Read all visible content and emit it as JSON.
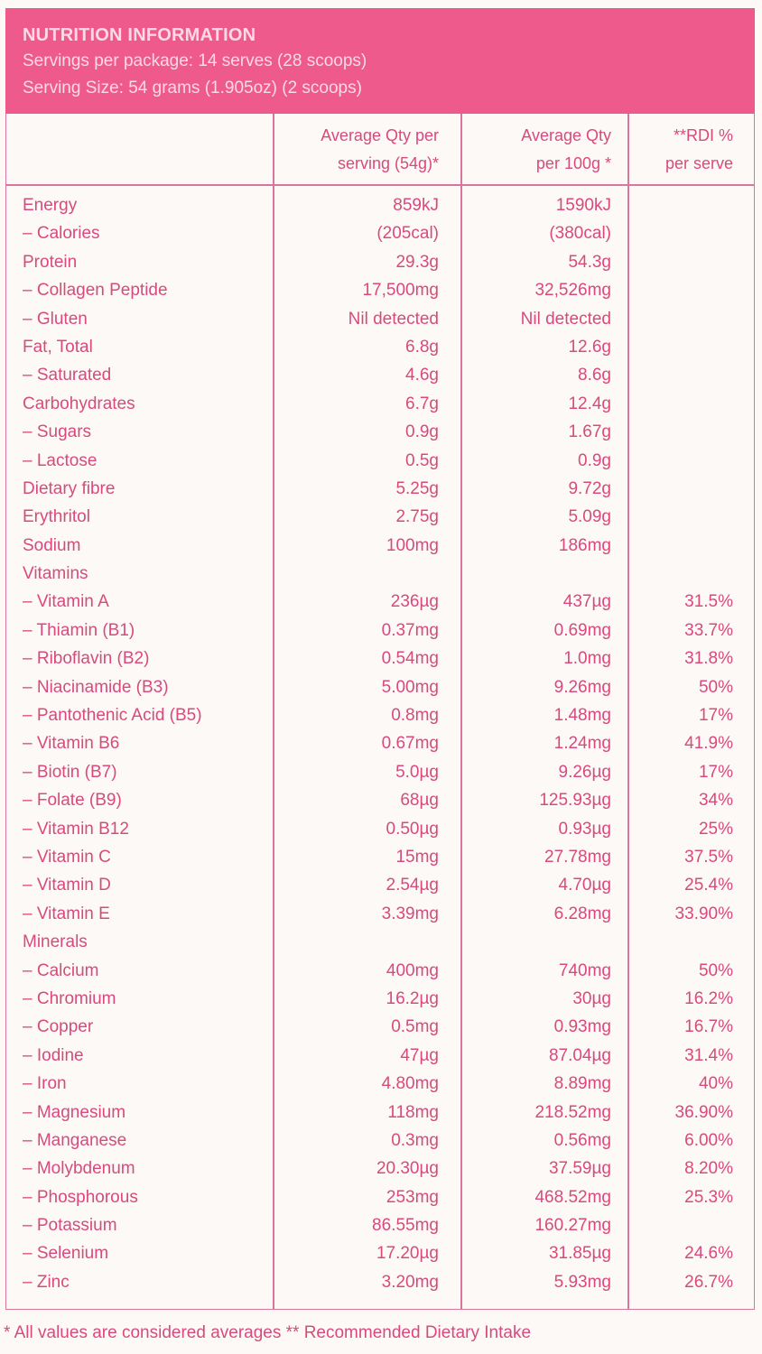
{
  "header": {
    "title": "NUTRITION INFORMATION",
    "servings_per_package": "Servings per package: 14 serves (28 scoops)",
    "serving_size": "Serving Size: 54 grams (1.905oz) (2 scoops)"
  },
  "columns": {
    "per_serving": [
      "Average Qty per",
      "serving (54g)*"
    ],
    "per_100g": [
      "Average Qty",
      "per 100g *"
    ],
    "rdi": [
      "**RDI %",
      "per serve"
    ]
  },
  "rows": [
    {
      "name": "Energy",
      "serving": "859kJ",
      "per100": "1590kJ",
      "rdi": ""
    },
    {
      "name": "– Calories",
      "serving": "(205cal)",
      "per100": "(380cal)",
      "rdi": ""
    },
    {
      "name": "Protein",
      "serving": "29.3g",
      "per100": "54.3g",
      "rdi": ""
    },
    {
      "name": "– Collagen Peptide",
      "serving": "17,500mg",
      "per100": "32,526mg",
      "rdi": ""
    },
    {
      "name": "– Gluten",
      "serving": "Nil detected",
      "per100": "Nil detected",
      "rdi": ""
    },
    {
      "name": "Fat, Total",
      "serving": "6.8g",
      "per100": "12.6g",
      "rdi": ""
    },
    {
      "name": "– Saturated",
      "serving": "4.6g",
      "per100": "8.6g",
      "rdi": ""
    },
    {
      "name": "Carbohydrates",
      "serving": "6.7g",
      "per100": "12.4g",
      "rdi": ""
    },
    {
      "name": "– Sugars",
      "serving": "0.9g",
      "per100": "1.67g",
      "rdi": ""
    },
    {
      "name": "– Lactose",
      "serving": "0.5g",
      "per100": "0.9g",
      "rdi": ""
    },
    {
      "name": "Dietary fibre",
      "serving": "5.25g",
      "per100": "9.72g",
      "rdi": ""
    },
    {
      "name": "Erythritol",
      "serving": "2.75g",
      "per100": "5.09g",
      "rdi": ""
    },
    {
      "name": "Sodium",
      "serving": "100mg",
      "per100": "186mg",
      "rdi": ""
    },
    {
      "name": "Vitamins",
      "serving": "",
      "per100": "",
      "rdi": ""
    },
    {
      "name": "– Vitamin A",
      "serving": "236µg",
      "per100": "437µg",
      "rdi": "31.5%"
    },
    {
      "name": "– Thiamin (B1)",
      "serving": "0.37mg",
      "per100": "0.69mg",
      "rdi": "33.7%"
    },
    {
      "name": "– Riboflavin (B2)",
      "serving": "0.54mg",
      "per100": "1.0mg",
      "rdi": "31.8%"
    },
    {
      "name": "– Niacinamide (B3)",
      "serving": "5.00mg",
      "per100": "9.26mg",
      "rdi": "50%"
    },
    {
      "name": "– Pantothenic Acid (B5)",
      "serving": "0.8mg",
      "per100": "1.48mg",
      "rdi": "17%"
    },
    {
      "name": "– Vitamin B6",
      "serving": "0.67mg",
      "per100": "1.24mg",
      "rdi": "41.9%"
    },
    {
      "name": "– Biotin (B7)",
      "serving": "5.0µg",
      "per100": "9.26µg",
      "rdi": "17%"
    },
    {
      "name": "– Folate (B9)",
      "serving": "68µg",
      "per100": "125.93µg",
      "rdi": "34%"
    },
    {
      "name": "– Vitamin B12",
      "serving": "0.50µg",
      "per100": "0.93µg",
      "rdi": "25%"
    },
    {
      "name": "– Vitamin C",
      "serving": "15mg",
      "per100": "27.78mg",
      "rdi": "37.5%"
    },
    {
      "name": "– Vitamin D",
      "serving": "2.54µg",
      "per100": "4.70µg",
      "rdi": "25.4%"
    },
    {
      "name": "– Vitamin E",
      "serving": "3.39mg",
      "per100": "6.28mg",
      "rdi": "33.90%"
    },
    {
      "name": "Minerals",
      "serving": "",
      "per100": "",
      "rdi": ""
    },
    {
      "name": "– Calcium",
      "serving": "400mg",
      "per100": "740mg",
      "rdi": "50%"
    },
    {
      "name": "– Chromium",
      "serving": "16.2µg",
      "per100": "30µg",
      "rdi": "16.2%"
    },
    {
      "name": "– Copper",
      "serving": "0.5mg",
      "per100": "0.93mg",
      "rdi": "16.7%"
    },
    {
      "name": "– Iodine",
      "serving": "47µg",
      "per100": "87.04µg",
      "rdi": "31.4%"
    },
    {
      "name": "– Iron",
      "serving": "4.80mg",
      "per100": "8.89mg",
      "rdi": "40%"
    },
    {
      "name": "– Magnesium",
      "serving": "118mg",
      "per100": "218.52mg",
      "rdi": "36.90%"
    },
    {
      "name": "– Manganese",
      "serving": "0.3mg",
      "per100": "0.56mg",
      "rdi": "6.00%"
    },
    {
      "name": "– Molybdenum",
      "serving": "20.30µg",
      "per100": "37.59µg",
      "rdi": "8.20%"
    },
    {
      "name": "– Phosphorous",
      "serving": "253mg",
      "per100": "468.52mg",
      "rdi": "25.3%"
    },
    {
      "name": "– Potassium",
      "serving": "86.55mg",
      "per100": "160.27mg",
      "rdi": ""
    },
    {
      "name": "– Selenium",
      "serving": "17.20µg",
      "per100": "31.85µg",
      "rdi": "24.6%"
    },
    {
      "name": "– Zinc",
      "serving": "3.20mg",
      "per100": "5.93mg",
      "rdi": "26.7%"
    }
  ],
  "footer": "* All values are considered averages  ** Recommended Dietary Intake",
  "colors": {
    "header_bg": "#ee5a8b",
    "header_text": "#fbd9e5",
    "text": "#d84a7e",
    "border": "#d9769c",
    "background": "#fdf9f6"
  }
}
